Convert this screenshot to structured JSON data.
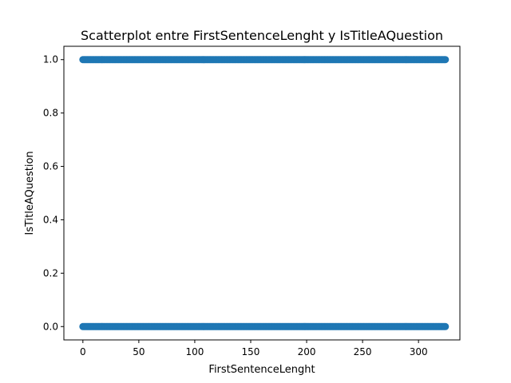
{
  "chart_data": {
    "type": "scatter",
    "title": "Scatterplot entre FirstSentenceLenght y IsTitleAQuestion",
    "xlabel": "FirstSentenceLenght",
    "ylabel": "IsTitleAQuestion",
    "xlim": [
      -17,
      337
    ],
    "ylim": [
      -0.05,
      1.05
    ],
    "xticks": [
      0,
      50,
      100,
      150,
      200,
      250,
      300
    ],
    "xtick_labels": [
      "0",
      "50",
      "100",
      "150",
      "200",
      "250",
      "300"
    ],
    "yticks": [
      0.0,
      0.2,
      0.4,
      0.6,
      0.8,
      1.0
    ],
    "ytick_labels": [
      "0.0",
      "0.2",
      "0.4",
      "0.6",
      "0.8",
      "1.0"
    ],
    "grid": false,
    "legend": "none",
    "series": [
      {
        "color": "#1f77b4",
        "x_range": [
          0,
          324
        ],
        "y_values": [
          0,
          1
        ]
      }
    ]
  }
}
